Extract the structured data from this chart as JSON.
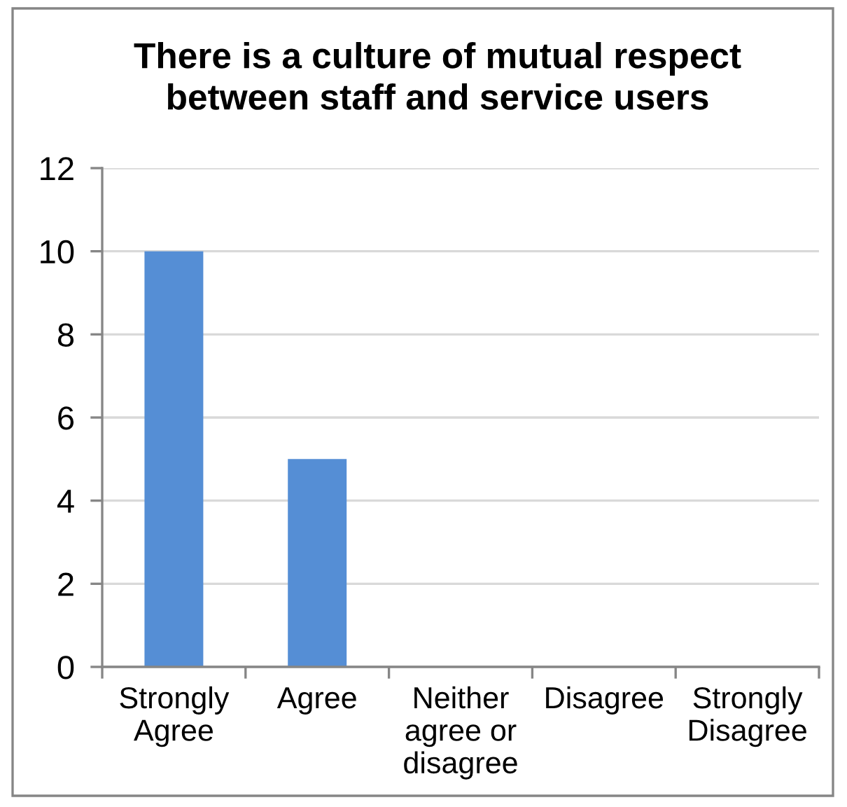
{
  "chart_data": {
    "type": "bar",
    "title": "There is a culture of mutual respect\nbetween staff and service users",
    "categories": [
      "Strongly\nAgree",
      "Agree",
      "Neither\nagree or\ndisagree",
      "Disagree",
      "Strongly\nDisagree"
    ],
    "values": [
      10,
      5,
      0,
      0,
      0
    ],
    "color": "#558ed5",
    "ylim": [
      0,
      12
    ],
    "yticks": [
      0,
      2,
      4,
      6,
      8,
      10,
      12
    ],
    "grid": "y"
  }
}
